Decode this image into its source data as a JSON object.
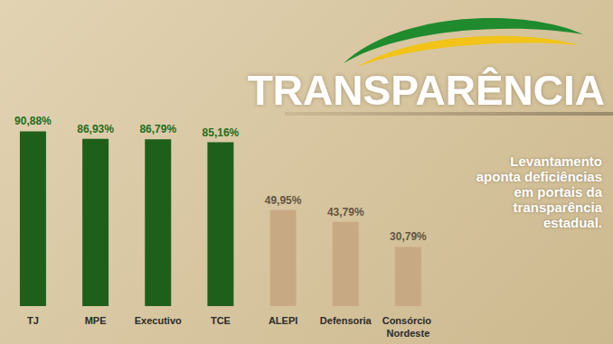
{
  "chart_data": {
    "type": "bar",
    "title": "TRANSPARÊNCIA",
    "subtitle": "Levantamento aponta deficiências em portais da transparência estadual.",
    "categories": [
      "TJ",
      "MPE",
      "Executivo",
      "TCE",
      "ALEPI",
      "Defensoria",
      "Consórcio Nordeste"
    ],
    "values": [
      90.88,
      86.93,
      86.79,
      85.16,
      49.95,
      43.79,
      30.79
    ],
    "value_labels": [
      "90,88%",
      "86,93%",
      "86,79%",
      "85,16%",
      "49,95%",
      "43,79%",
      "30,79%"
    ],
    "colors": [
      "#1f5f1c",
      "#1f5f1c",
      "#1f5f1c",
      "#1f5f1c",
      "#c7aa84",
      "#c7aa84",
      "#c7aa84"
    ],
    "ylim": [
      0,
      100
    ],
    "data_labels": true,
    "tick_labels": "x"
  }
}
